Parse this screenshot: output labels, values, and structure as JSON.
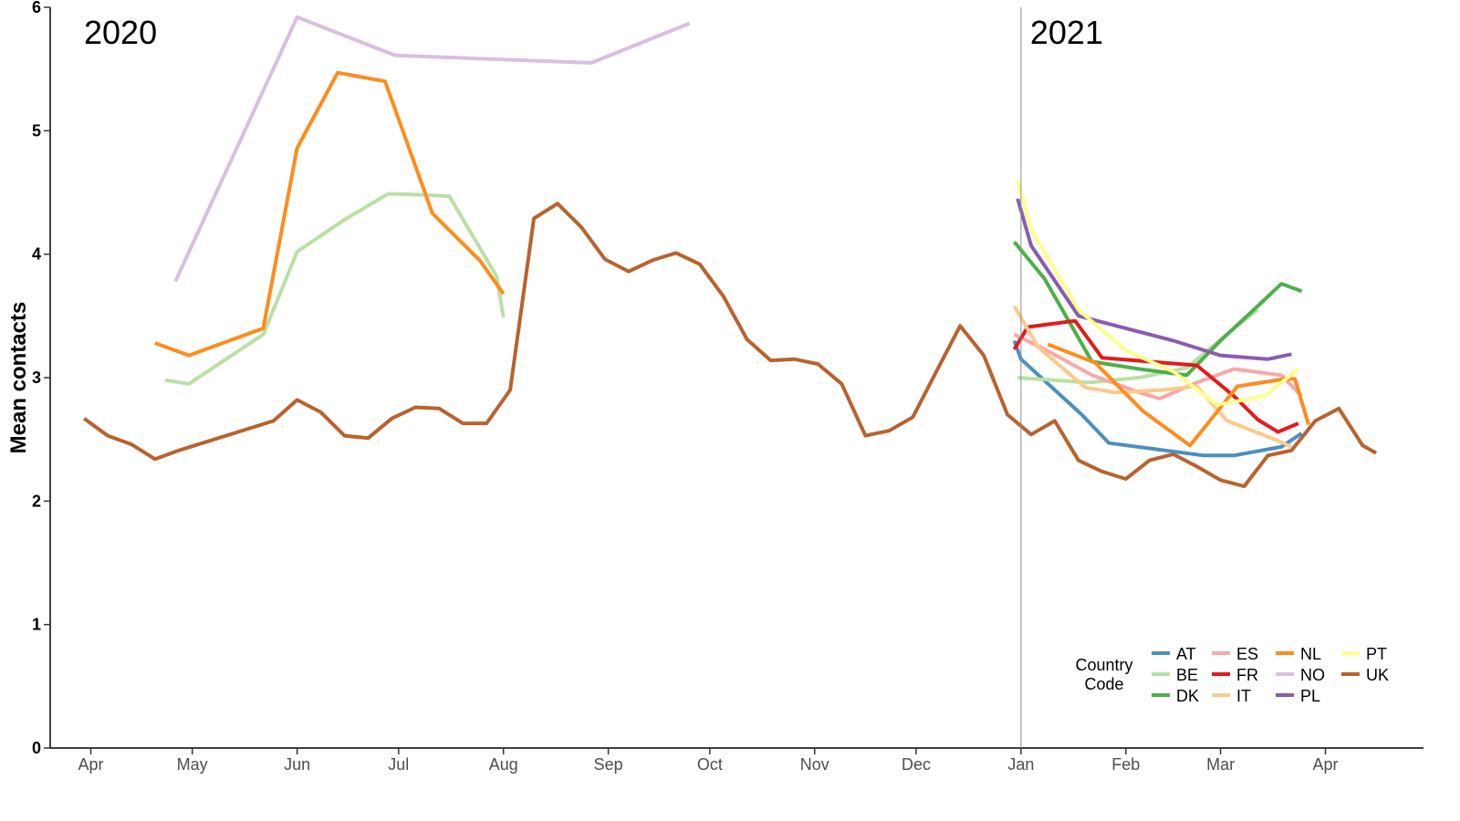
{
  "chart_data": {
    "type": "line",
    "ylabel": "Mean contacts",
    "ylim": [
      0,
      6
    ],
    "yticks": [
      0,
      1,
      2,
      3,
      4,
      5,
      6
    ],
    "x_month_ticks": [
      {
        "label": "Apr",
        "date": "2020-04-01"
      },
      {
        "label": "May",
        "date": "2020-05-01"
      },
      {
        "label": "Jun",
        "date": "2020-06-01"
      },
      {
        "label": "Jul",
        "date": "2020-07-01"
      },
      {
        "label": "Aug",
        "date": "2020-08-01"
      },
      {
        "label": "Sep",
        "date": "2020-09-01"
      },
      {
        "label": "Oct",
        "date": "2020-10-01"
      },
      {
        "label": "Nov",
        "date": "2020-11-01"
      },
      {
        "label": "Dec",
        "date": "2020-12-01"
      },
      {
        "label": "Jan",
        "date": "2021-01-01"
      },
      {
        "label": "Feb",
        "date": "2021-02-01"
      },
      {
        "label": "Mar",
        "date": "2021-03-01"
      },
      {
        "label": "Apr",
        "date": "2021-04-01"
      }
    ],
    "xlim": [
      "2020-03-20",
      "2021-04-30"
    ],
    "year_annotations": [
      "2020",
      "2021"
    ],
    "year_divider_date": "2021-01-01",
    "grid": false,
    "legend_title": "Country\nCode",
    "legend_position": "bottom-right",
    "series": [
      {
        "name": "AT",
        "color": "#4A90C0",
        "points": [
          [
            "2020-12-30",
            3.3
          ],
          [
            "2021-01-01",
            3.15
          ],
          [
            "2021-01-19",
            2.7
          ],
          [
            "2021-01-27",
            2.47
          ],
          [
            "2021-02-10",
            2.42
          ],
          [
            "2021-02-24",
            2.37
          ],
          [
            "2021-03-05",
            2.37
          ],
          [
            "2021-03-19",
            2.44
          ],
          [
            "2021-03-25",
            2.55
          ]
        ]
      },
      {
        "name": "BE",
        "color": "#B9E0A5",
        "points": [
          [
            "2020-04-23",
            2.98
          ],
          [
            "2020-04-30",
            2.95
          ],
          [
            "2020-05-22",
            3.35
          ],
          [
            "2020-06-01",
            4.02
          ],
          [
            "2020-06-15",
            4.28
          ],
          [
            "2020-06-28",
            4.49
          ],
          [
            "2020-07-09",
            4.48
          ],
          [
            "2020-07-16",
            4.47
          ],
          [
            "2020-07-30",
            3.82
          ],
          [
            "2020-08-01",
            3.49
          ],
          [
            "2020-12-31",
            3.0
          ],
          [
            "2021-01-21",
            2.96
          ],
          [
            "2021-02-05",
            3.0
          ],
          [
            "2021-02-19",
            3.08
          ],
          [
            "2021-03-05",
            3.4
          ],
          [
            "2021-03-12",
            3.55
          ]
        ]
      },
      {
        "name": "DK",
        "color": "#4DAF4A",
        "points": [
          [
            "2020-12-30",
            4.1
          ],
          [
            "2021-01-08",
            3.8
          ],
          [
            "2021-01-22",
            3.13
          ],
          [
            "2021-02-05",
            3.07
          ],
          [
            "2021-02-19",
            3.02
          ],
          [
            "2021-03-01",
            3.3
          ],
          [
            "2021-03-12",
            3.58
          ],
          [
            "2021-03-19",
            3.76
          ],
          [
            "2021-03-25",
            3.7
          ]
        ]
      },
      {
        "name": "ES",
        "color": "#F7A8A8",
        "points": [
          [
            "2020-12-30",
            3.35
          ],
          [
            "2021-01-08",
            3.23
          ],
          [
            "2021-01-22",
            3.02
          ],
          [
            "2021-02-05",
            2.88
          ],
          [
            "2021-02-11",
            2.83
          ],
          [
            "2021-02-21",
            2.95
          ],
          [
            "2021-03-05",
            3.07
          ],
          [
            "2021-03-19",
            3.02
          ],
          [
            "2021-03-25",
            2.85
          ]
        ]
      },
      {
        "name": "FR",
        "color": "#E41A1C",
        "points": [
          [
            "2020-12-30",
            3.23
          ],
          [
            "2021-01-03",
            3.41
          ],
          [
            "2021-01-17",
            3.46
          ],
          [
            "2021-01-25",
            3.16
          ],
          [
            "2021-02-08",
            3.13
          ],
          [
            "2021-02-22",
            3.1
          ],
          [
            "2021-03-05",
            2.85
          ],
          [
            "2021-03-12",
            2.66
          ],
          [
            "2021-03-18",
            2.56
          ],
          [
            "2021-03-24",
            2.63
          ]
        ]
      },
      {
        "name": "IT",
        "color": "#FDC98A",
        "points": [
          [
            "2020-12-30",
            3.58
          ],
          [
            "2021-01-06",
            3.25
          ],
          [
            "2021-01-20",
            2.92
          ],
          [
            "2021-01-29",
            2.88
          ],
          [
            "2021-02-12",
            2.9
          ],
          [
            "2021-02-22",
            2.93
          ],
          [
            "2021-03-03",
            2.65
          ],
          [
            "2021-03-17",
            2.5
          ],
          [
            "2021-03-22",
            2.44
          ]
        ]
      },
      {
        "name": "NL",
        "color": "#FF8C1A",
        "points": [
          [
            "2020-04-20",
            3.28
          ],
          [
            "2020-04-30",
            3.18
          ],
          [
            "2020-05-22",
            3.4
          ],
          [
            "2020-06-01",
            4.86
          ],
          [
            "2020-06-13",
            5.47
          ],
          [
            "2020-06-27",
            5.4
          ],
          [
            "2020-07-11",
            4.33
          ],
          [
            "2020-07-25",
            3.95
          ],
          [
            "2020-08-01",
            3.68
          ],
          [
            "2021-01-09",
            3.27
          ],
          [
            "2021-01-23",
            3.12
          ],
          [
            "2021-02-06",
            2.73
          ],
          [
            "2021-02-20",
            2.45
          ],
          [
            "2021-03-06",
            2.93
          ],
          [
            "2021-03-20",
            2.99
          ],
          [
            "2021-03-23",
            2.99
          ],
          [
            "2021-03-27",
            2.62
          ]
        ]
      },
      {
        "name": "NO",
        "color": "#D8BFE0",
        "points": [
          [
            "2020-04-26",
            3.78
          ],
          [
            "2020-06-01",
            5.92
          ],
          [
            "2020-06-30",
            5.61
          ],
          [
            "2020-08-27",
            5.55
          ],
          [
            "2020-09-25",
            5.87
          ]
        ]
      },
      {
        "name": "PL",
        "color": "#8B5BB0",
        "points": [
          [
            "2020-12-31",
            4.45
          ],
          [
            "2021-01-04",
            4.07
          ],
          [
            "2021-01-18",
            3.5
          ],
          [
            "2021-02-01",
            3.4
          ],
          [
            "2021-02-15",
            3.3
          ],
          [
            "2021-03-01",
            3.18
          ],
          [
            "2021-03-15",
            3.15
          ],
          [
            "2021-03-22",
            3.19
          ]
        ]
      },
      {
        "name": "PT",
        "color": "#FFFF8C",
        "points": [
          [
            "2020-12-31",
            4.6
          ],
          [
            "2021-01-04",
            4.2
          ],
          [
            "2021-01-18",
            3.55
          ],
          [
            "2021-02-01",
            3.22
          ],
          [
            "2021-02-15",
            3.05
          ],
          [
            "2021-02-28",
            2.78
          ],
          [
            "2021-03-14",
            2.85
          ],
          [
            "2021-03-24",
            3.07
          ]
        ]
      },
      {
        "name": "UK",
        "color": "#B9622D",
        "points": [
          [
            "2020-03-30",
            2.67
          ],
          [
            "2020-04-06",
            2.53
          ],
          [
            "2020-04-13",
            2.46
          ],
          [
            "2020-04-20",
            2.34
          ],
          [
            "2020-04-27",
            2.41
          ],
          [
            "2020-05-04",
            2.47
          ],
          [
            "2020-05-11",
            2.53
          ],
          [
            "2020-05-18",
            2.59
          ],
          [
            "2020-05-25",
            2.65
          ],
          [
            "2020-06-01",
            2.82
          ],
          [
            "2020-06-08",
            2.72
          ],
          [
            "2020-06-15",
            2.53
          ],
          [
            "2020-06-22",
            2.51
          ],
          [
            "2020-06-29",
            2.67
          ],
          [
            "2020-07-06",
            2.76
          ],
          [
            "2020-07-13",
            2.75
          ],
          [
            "2020-07-20",
            2.63
          ],
          [
            "2020-07-27",
            2.63
          ],
          [
            "2020-08-03",
            2.9
          ],
          [
            "2020-08-10",
            4.29
          ],
          [
            "2020-08-17",
            4.41
          ],
          [
            "2020-08-24",
            4.22
          ],
          [
            "2020-08-31",
            3.96
          ],
          [
            "2020-09-07",
            3.86
          ],
          [
            "2020-09-14",
            3.95
          ],
          [
            "2020-09-21",
            4.01
          ],
          [
            "2020-09-28",
            3.92
          ],
          [
            "2020-10-05",
            3.66
          ],
          [
            "2020-10-12",
            3.31
          ],
          [
            "2020-10-19",
            3.14
          ],
          [
            "2020-10-26",
            3.15
          ],
          [
            "2020-11-02",
            3.11
          ],
          [
            "2020-11-09",
            2.95
          ],
          [
            "2020-11-16",
            2.53
          ],
          [
            "2020-11-23",
            2.57
          ],
          [
            "2020-11-30",
            2.68
          ],
          [
            "2020-12-07",
            3.05
          ],
          [
            "2020-12-14",
            3.42
          ],
          [
            "2020-12-21",
            3.18
          ],
          [
            "2020-12-28",
            2.7
          ],
          [
            "2021-01-04",
            2.54
          ],
          [
            "2021-01-11",
            2.65
          ],
          [
            "2021-01-18",
            2.33
          ],
          [
            "2021-01-25",
            2.24
          ],
          [
            "2021-02-01",
            2.18
          ],
          [
            "2021-02-08",
            2.33
          ],
          [
            "2021-02-15",
            2.38
          ],
          [
            "2021-02-22",
            2.28
          ],
          [
            "2021-03-01",
            2.17
          ],
          [
            "2021-03-08",
            2.12
          ],
          [
            "2021-03-15",
            2.37
          ],
          [
            "2021-03-22",
            2.41
          ],
          [
            "2021-03-29",
            2.65
          ],
          [
            "2021-04-05",
            2.75
          ],
          [
            "2021-04-12",
            2.45
          ],
          [
            "2021-04-16",
            2.39
          ]
        ]
      }
    ]
  }
}
